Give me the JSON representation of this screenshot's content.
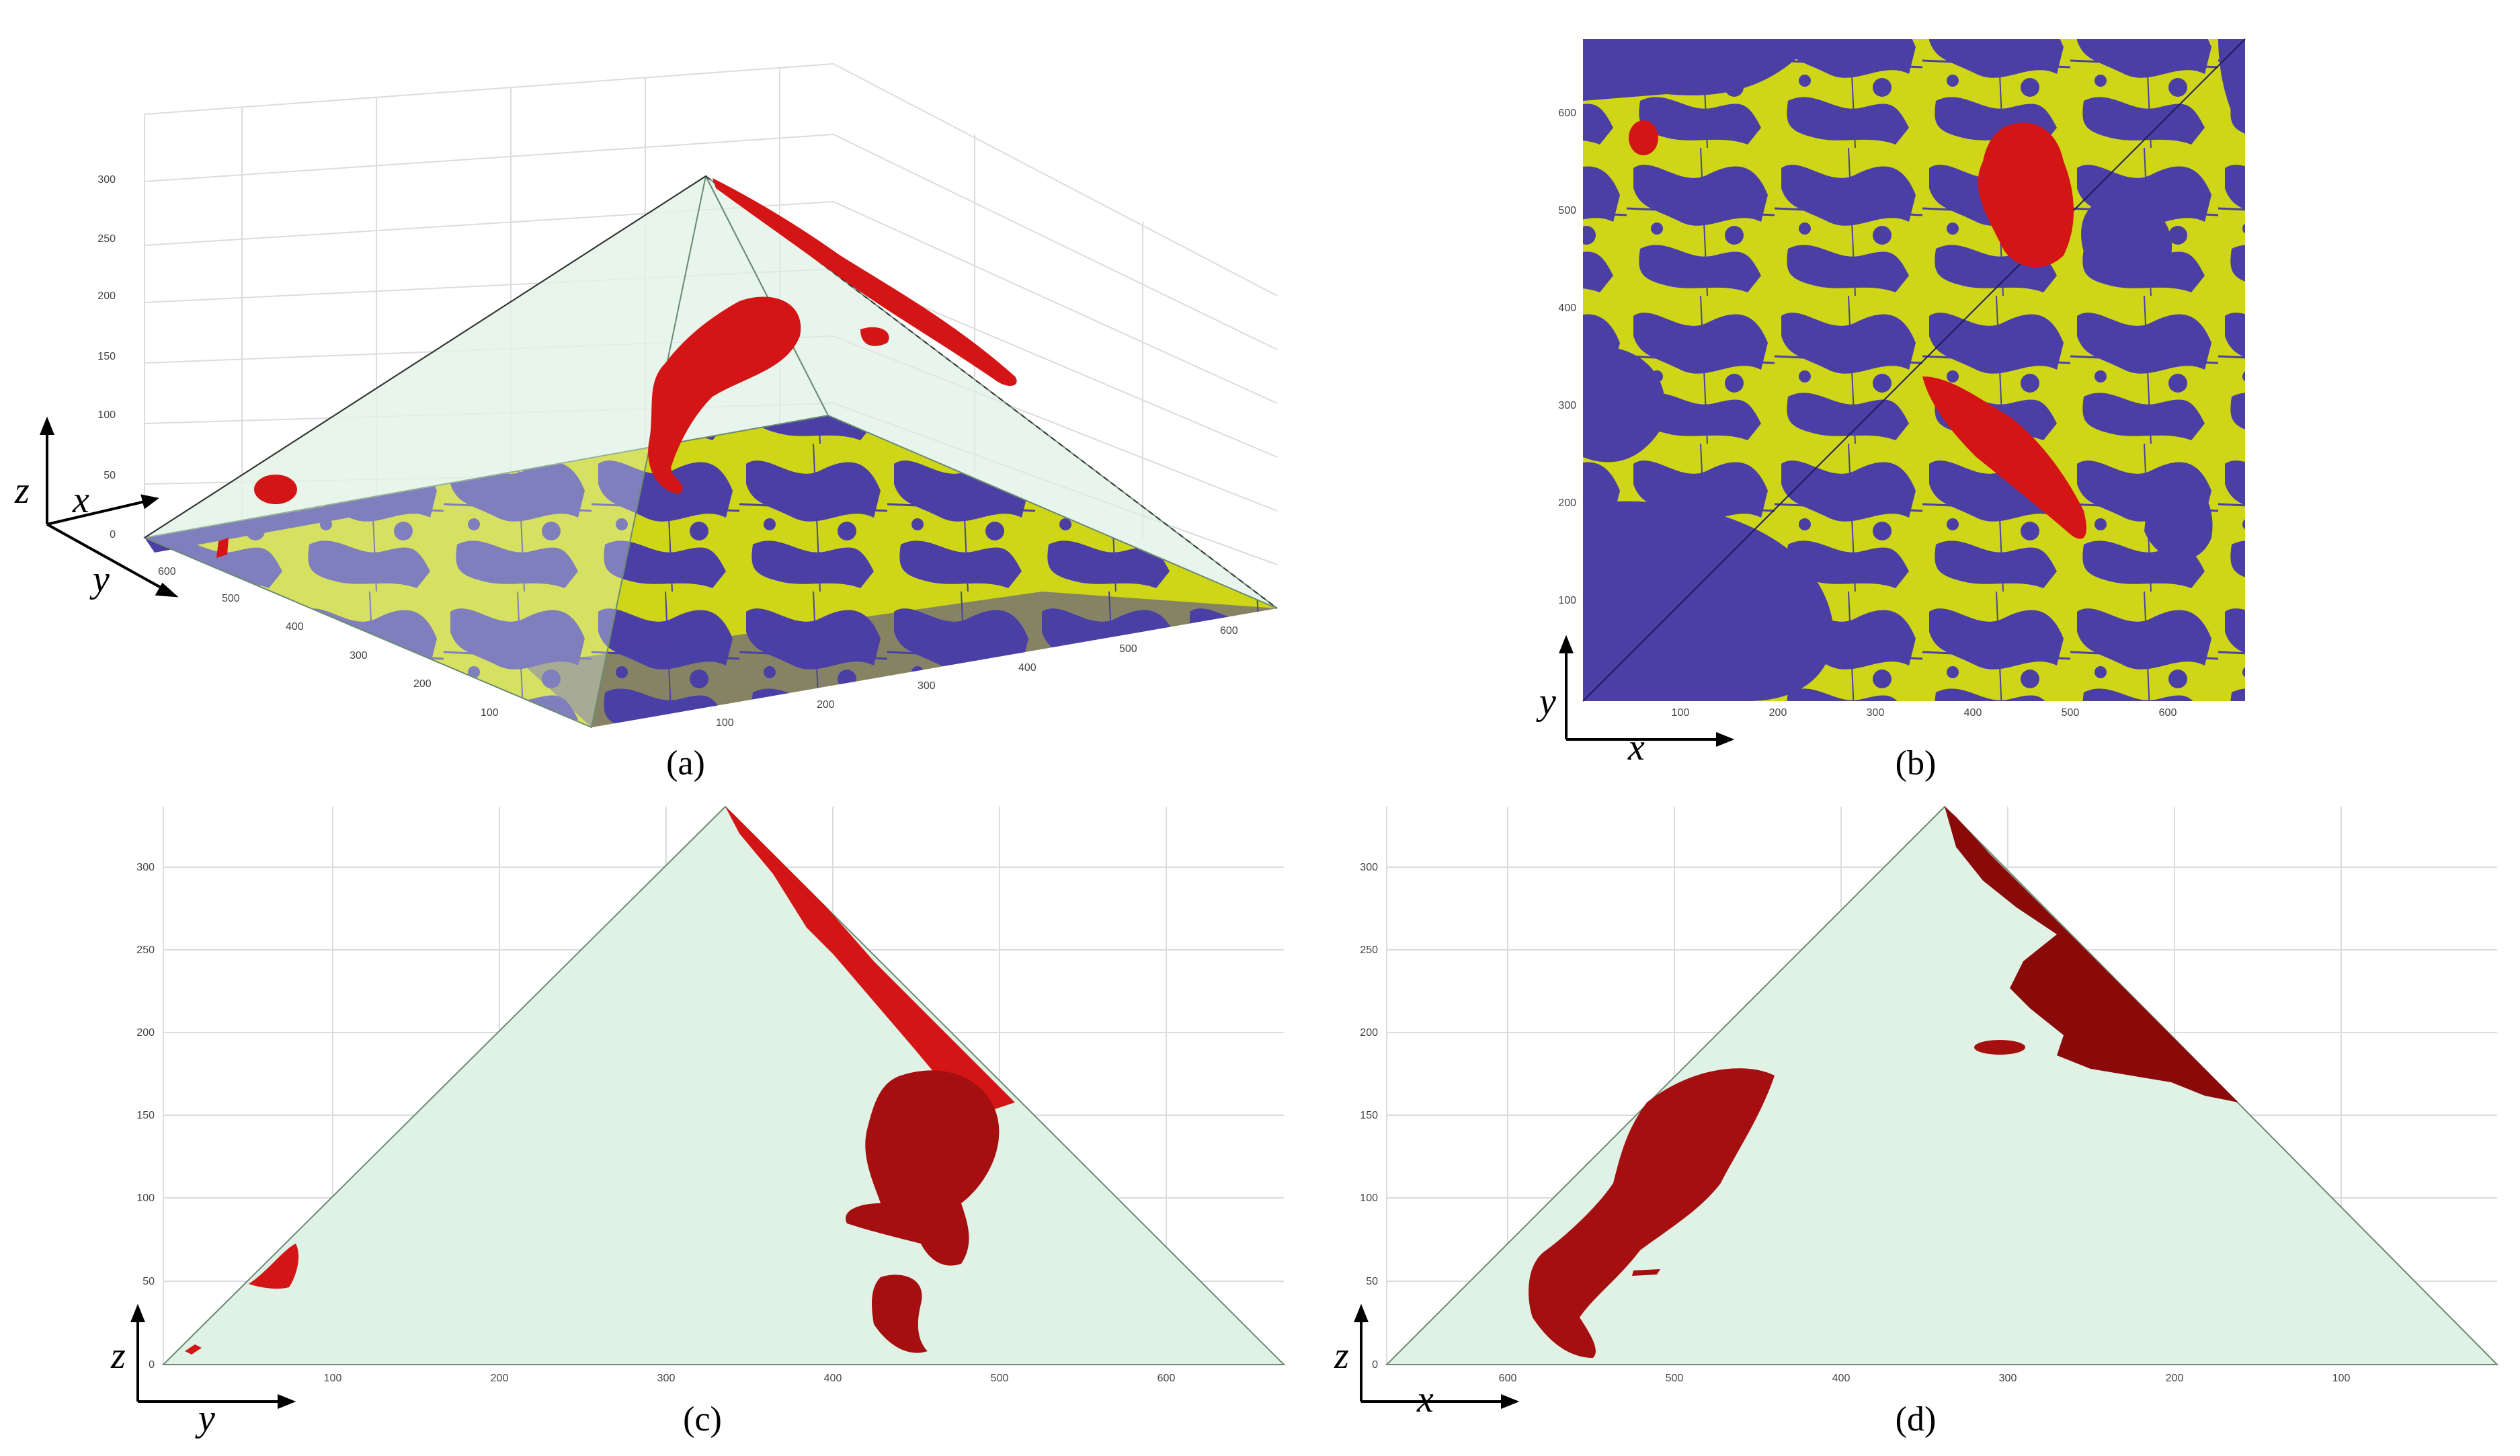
{
  "panels": {
    "a": {
      "caption": "(a)",
      "z_ticks": [
        "0",
        "50",
        "100",
        "150",
        "200",
        "250",
        "300"
      ],
      "y_ticks": [
        "600",
        "500",
        "400",
        "300",
        "200",
        "100"
      ],
      "x_ticks": [
        "100",
        "200",
        "300",
        "400",
        "500",
        "600"
      ],
      "axis_labels": {
        "z": "z",
        "x": "x",
        "y": "y"
      }
    },
    "b": {
      "caption": "(b)",
      "y_ticks": [
        "600",
        "500",
        "400",
        "300",
        "200",
        "100"
      ],
      "x_ticks": [
        "100",
        "200",
        "300",
        "400",
        "500",
        "600"
      ],
      "axis_labels": {
        "y": "y",
        "x": "x"
      }
    },
    "c": {
      "caption": "(c)",
      "z_ticks": [
        "0",
        "50",
        "100",
        "150",
        "200",
        "250",
        "300"
      ],
      "y_ticks": [
        "100",
        "200",
        "300",
        "400",
        "500",
        "600"
      ],
      "axis_labels": {
        "z": "z",
        "y": "y"
      }
    },
    "d": {
      "caption": "(d)",
      "z_ticks": [
        "0",
        "50",
        "100",
        "150",
        "200",
        "250",
        "300"
      ],
      "x_ticks": [
        "600",
        "500",
        "400",
        "300",
        "200",
        "100"
      ],
      "axis_labels": {
        "z": "z",
        "x": "x"
      }
    }
  },
  "colors": {
    "pyramid": "#e0f2e6",
    "land": "#cfd617",
    "water": "#4b3fa5",
    "plume": "#d41515",
    "plume_dark": "#8a0a0a"
  }
}
